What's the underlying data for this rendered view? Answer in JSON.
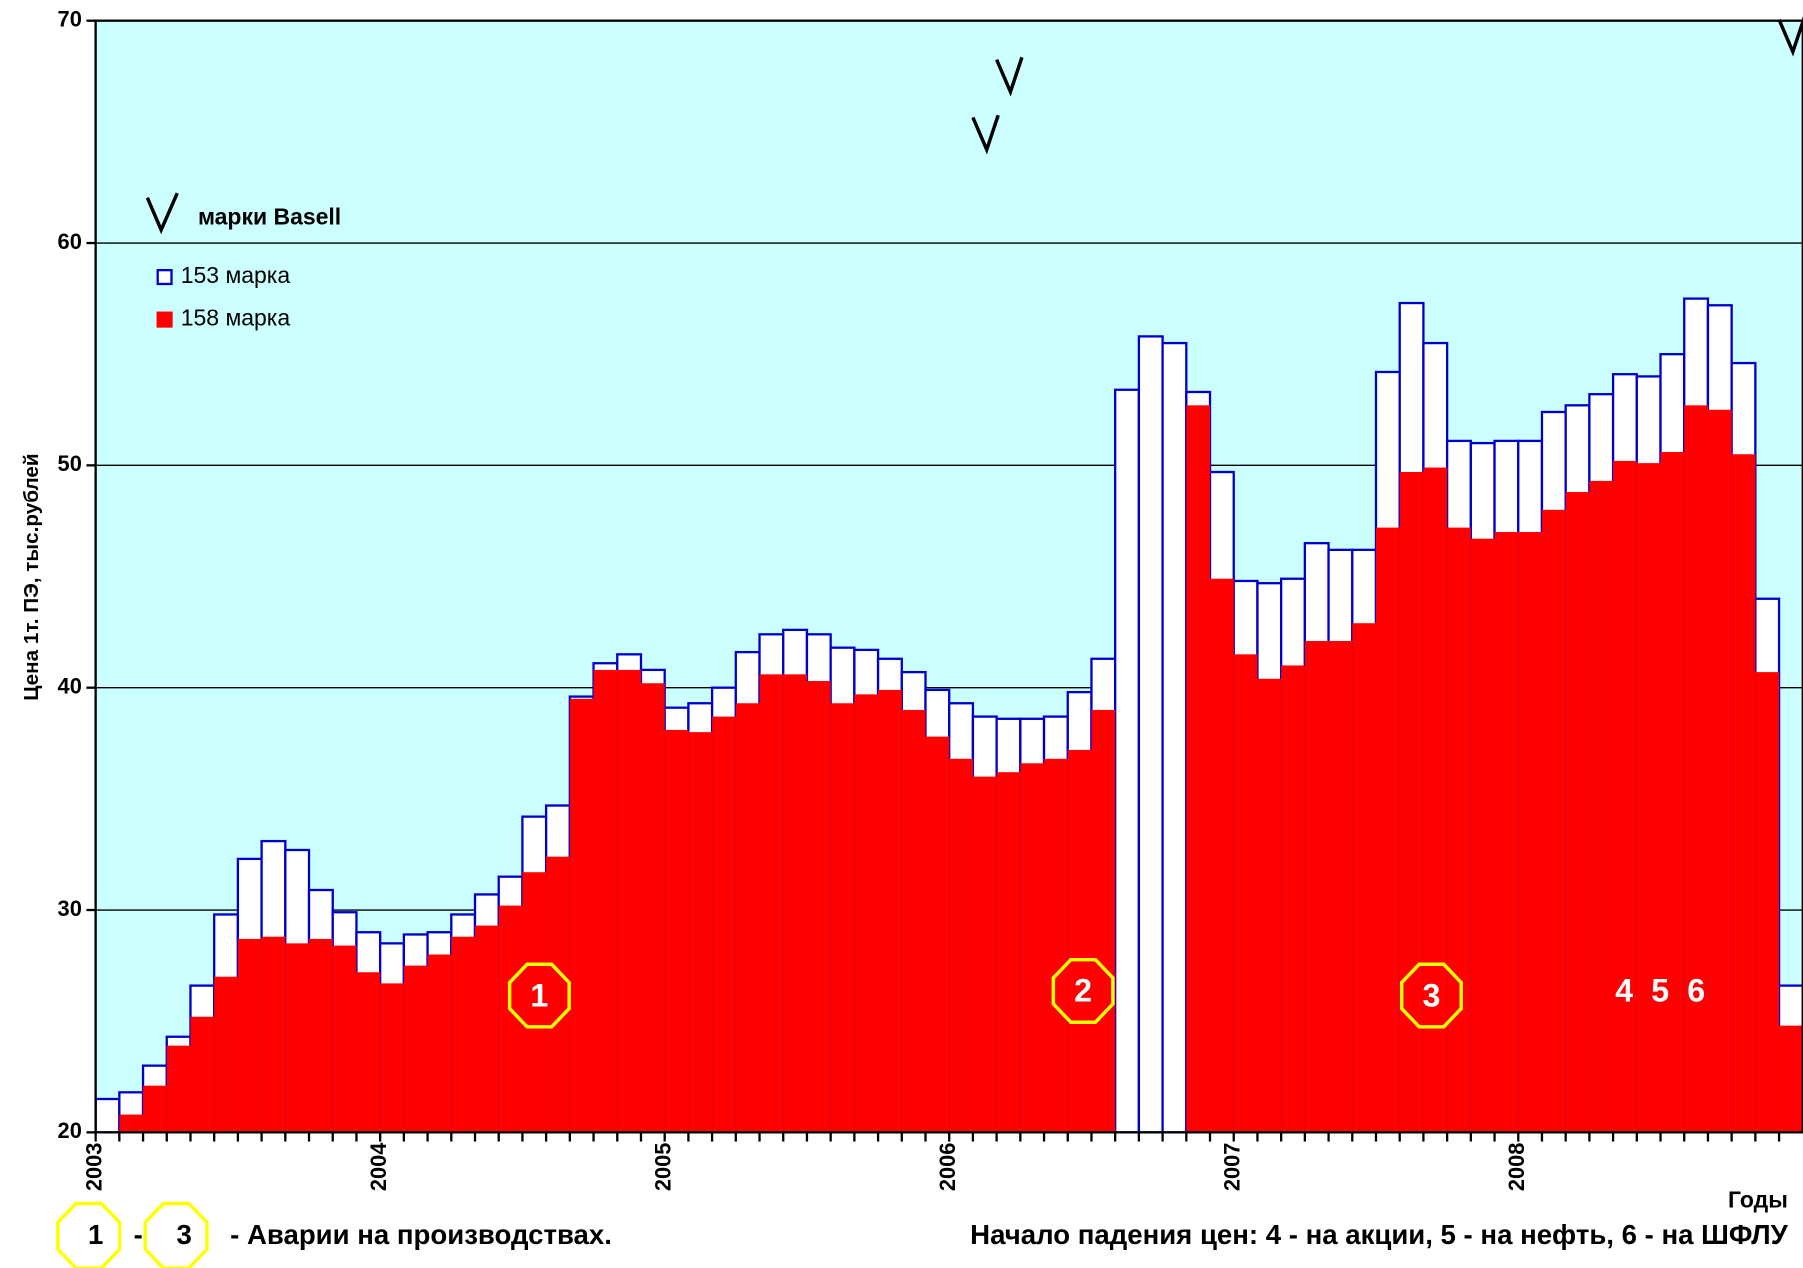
{
  "chart_data": {
    "type": "bar",
    "y_label": "Цена 1т. ПЭ, тыс.рублей",
    "x_label": "Годы",
    "categories": [
      "2003",
      null,
      null,
      null,
      null,
      null,
      null,
      null,
      null,
      null,
      null,
      null,
      "2004",
      null,
      null,
      null,
      null,
      null,
      null,
      null,
      null,
      null,
      null,
      null,
      "2005",
      null,
      null,
      null,
      null,
      null,
      null,
      null,
      null,
      null,
      null,
      null,
      "2006",
      null,
      null,
      null,
      null,
      null,
      null,
      null,
      null,
      null,
      null,
      null,
      "2007",
      null,
      null,
      null,
      null,
      null,
      null,
      null,
      null,
      null,
      null,
      null,
      "2008",
      null,
      null,
      null,
      null,
      null,
      null,
      null,
      null,
      null,
      null,
      null
    ],
    "series": [
      {
        "name": "153 марка",
        "color": "#ffffff",
        "edge": "#0000cc",
        "values": [
          21.5,
          21.8,
          23.0,
          24.3,
          26.6,
          29.8,
          32.3,
          33.1,
          32.7,
          30.9,
          29.9,
          29.0,
          28.5,
          28.9,
          29.0,
          29.8,
          30.7,
          31.5,
          34.2,
          34.7,
          39.6,
          41.1,
          41.5,
          40.8,
          39.1,
          39.3,
          40.0,
          41.6,
          42.4,
          42.6,
          42.4,
          41.8,
          41.7,
          41.3,
          40.7,
          39.9,
          39.3,
          38.7,
          38.6,
          38.6,
          38.7,
          39.8,
          41.3,
          53.4,
          55.8,
          55.5,
          53.3,
          49.7,
          44.8,
          44.7,
          44.9,
          46.5,
          46.2,
          46.2,
          54.2,
          57.3,
          55.5,
          51.1,
          51.0,
          51.1,
          51.1,
          52.4,
          52.7,
          53.2,
          54.1,
          54.0,
          55.0,
          57.5,
          57.2,
          54.6,
          44.0,
          26.6
        ]
      },
      {
        "name": "158 марка",
        "color": "#ff0000",
        "values": [
          null,
          20.8,
          22.1,
          23.9,
          25.2,
          27.0,
          28.7,
          28.8,
          28.5,
          28.7,
          28.4,
          27.2,
          26.7,
          27.5,
          28.0,
          28.8,
          29.3,
          30.2,
          31.7,
          32.4,
          39.5,
          40.8,
          40.8,
          40.2,
          38.1,
          38.0,
          38.7,
          39.3,
          40.6,
          40.6,
          40.3,
          39.3,
          39.7,
          39.9,
          39.0,
          37.8,
          36.8,
          36.0,
          36.2,
          36.6,
          36.8,
          37.2,
          39.0,
          null,
          null,
          null,
          52.7,
          44.9,
          41.5,
          40.4,
          41.0,
          42.1,
          42.1,
          42.9,
          47.2,
          49.7,
          49.9,
          47.2,
          46.7,
          47.0,
          47.0,
          48.0,
          48.8,
          49.3,
          50.2,
          50.1,
          50.6,
          52.7,
          52.5,
          50.5,
          40.7,
          24.8
        ]
      },
      {
        "name": "марки Basell",
        "marker": "check",
        "color": "#000000",
        "values": [
          null,
          null,
          null,
          null,
          null,
          null,
          null,
          null,
          null,
          null,
          null,
          null,
          null,
          null,
          null,
          null,
          null,
          null,
          null,
          null,
          null,
          null,
          null,
          null,
          null,
          null,
          null,
          null,
          null,
          null,
          null,
          null,
          null,
          null,
          null,
          null,
          null,
          64.2,
          66.8,
          null,
          null,
          null,
          null,
          null,
          null,
          null,
          null,
          null,
          null,
          null,
          null,
          null,
          null,
          null,
          null,
          null,
          null,
          null,
          null,
          null,
          null,
          null,
          null,
          null,
          null,
          null,
          null,
          null,
          null,
          null,
          null,
          68.6
        ]
      }
    ],
    "ylim": [
      20,
      70
    ],
    "yticks": [
      20,
      30,
      40,
      50,
      60,
      70
    ],
    "grid": true,
    "plot_background": "#ccffff",
    "annotations": [
      "1",
      "2",
      "3",
      "4 5 6"
    ],
    "footnote": {
      "left_a": "1",
      "dash": "-",
      "left_b": "3",
      "left_text": "-  Аварии на производствах.",
      "right_text": "Начало падения цен:   4 - на акции, 5 - на нефть, 6 - на ШФЛУ"
    }
  }
}
